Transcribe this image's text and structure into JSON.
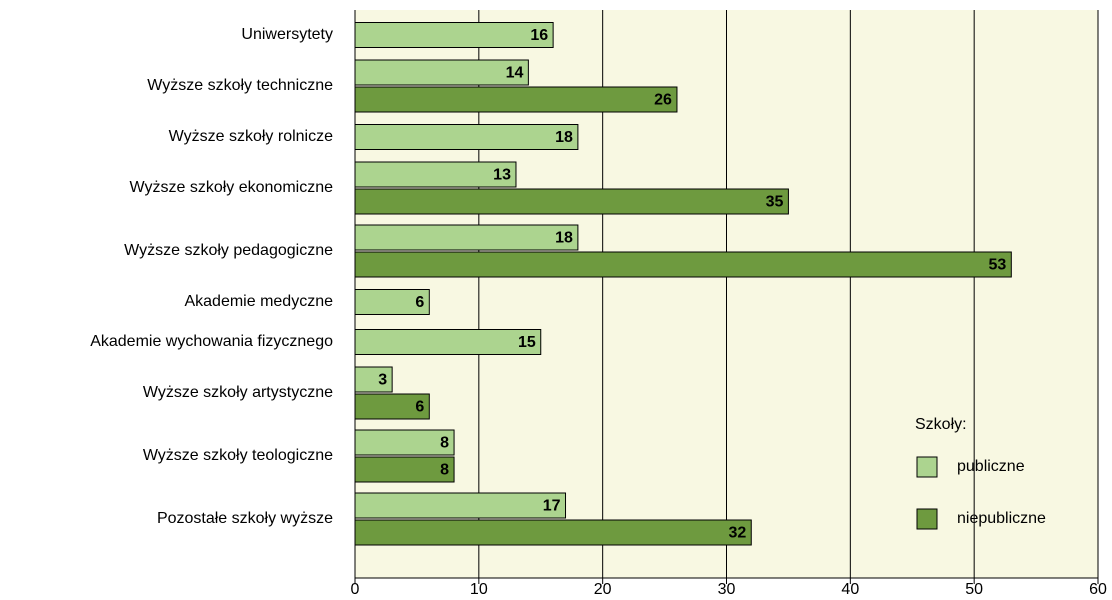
{
  "chart_data": {
    "type": "bar",
    "orientation": "horizontal",
    "categories": [
      "Uniwersytety",
      "Wyższe szkoły techniczne",
      "Wyższe szkoły rolnicze",
      "Wyższe szkoły ekonomiczne",
      "Wyższe szkoły pedagogiczne",
      "Akademie medyczne",
      "Akademie wychowania fizycznego",
      "Wyższe szkoły artystyczne",
      "Wyższe szkoły teologiczne",
      "Pozostałe szkoły wyższe"
    ],
    "series": [
      {
        "name": "publiczne",
        "color": "#acd48f",
        "values": [
          16,
          14,
          18,
          13,
          18,
          6,
          15,
          3,
          8,
          17
        ]
      },
      {
        "name": "niepubliczne",
        "color": "#6e9a3f",
        "values": [
          null,
          26,
          null,
          35,
          53,
          null,
          null,
          6,
          8,
          32
        ]
      }
    ],
    "xlim": [
      0,
      60
    ],
    "xticks": [
      0,
      10,
      20,
      30,
      40,
      50,
      60
    ],
    "grid": true,
    "legend_title": "Szkoły:",
    "legend": "lower right",
    "background": "#f8f8e2"
  }
}
